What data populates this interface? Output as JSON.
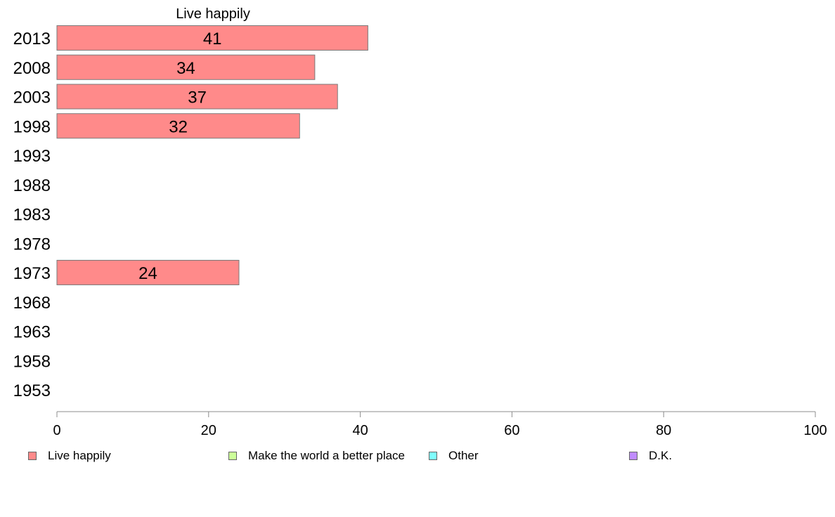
{
  "chart_data": {
    "type": "bar",
    "orientation": "horizontal",
    "title": "Live happily",
    "categories": [
      "2013",
      "2008",
      "2003",
      "1998",
      "1993",
      "1988",
      "1983",
      "1978",
      "1973",
      "1968",
      "1963",
      "1958",
      "1953"
    ],
    "series": [
      {
        "name": "Live happily",
        "color": "#ff8a8a",
        "values": [
          41,
          34,
          37,
          32,
          null,
          null,
          null,
          null,
          24,
          null,
          null,
          null,
          null
        ]
      }
    ],
    "xlim": [
      0,
      100
    ],
    "xticks": [
      "0",
      "20",
      "40",
      "60",
      "80",
      "100"
    ],
    "grid": false,
    "legend_position": "bottom"
  },
  "legend": [
    {
      "label": "Live happily",
      "color": "#ff8a8a"
    },
    {
      "label": "Make the world a better place",
      "color": "#ccff99"
    },
    {
      "label": "Other",
      "color": "#80ffff"
    },
    {
      "label": "D.K.",
      "color": "#c08cff"
    }
  ]
}
